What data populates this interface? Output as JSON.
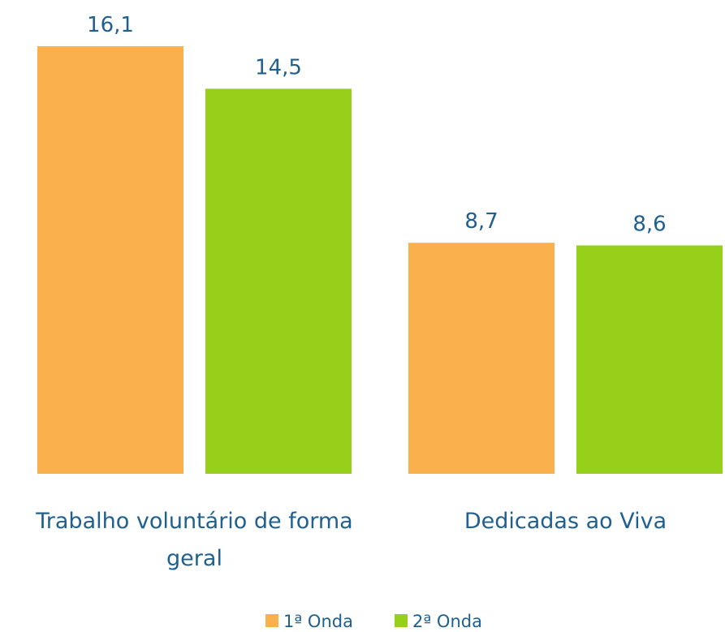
{
  "chart_data": {
    "type": "bar",
    "categories": [
      "Trabalho voluntário de forma geral",
      "Dedicadas ao Viva"
    ],
    "series": [
      {
        "name": "1ª Onda",
        "color": "#fbb04e",
        "values": [
          16.1,
          8.7
        ],
        "value_labels": [
          "16,1",
          "8,7"
        ]
      },
      {
        "name": "2ª Onda",
        "color": "#97d01a",
        "values": [
          14.5,
          8.6
        ],
        "value_labels": [
          "14,5",
          "8,6"
        ]
      }
    ],
    "legend": "bottom"
  }
}
